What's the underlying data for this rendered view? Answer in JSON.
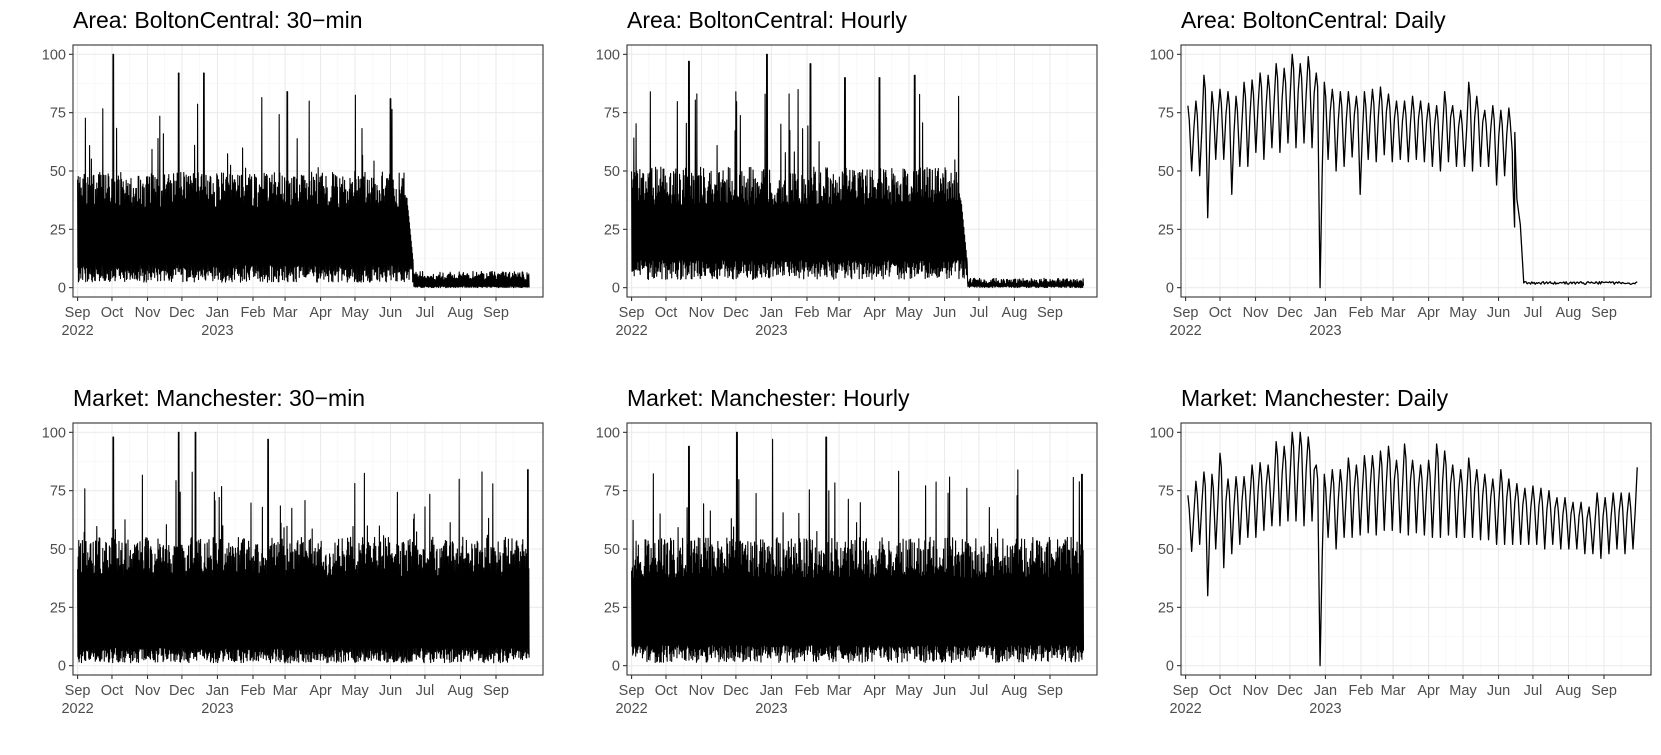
{
  "figure": {
    "panel_titles": [
      "Area: BoltonCentral: 30−min",
      "Area: BoltonCentral: Hourly",
      "Area: BoltonCentral: Daily",
      "Market: Manchester: 30−min",
      "Market: Manchester: Hourly",
      "Market: Manchester: Daily"
    ]
  },
  "chart_data": [
    {
      "type": "line",
      "title": "Area: BoltonCentral: 30−min",
      "resolution": "30-min",
      "xlabel": "",
      "ylabel": "",
      "xlim": [
        "2022-08-28",
        "2023-10-12"
      ],
      "ylim": [
        -4,
        104
      ],
      "y_ticks": [
        "0",
        "25",
        "50",
        "75",
        "100"
      ],
      "x_ticks": [
        "Sep\n2022",
        "Oct",
        "Nov",
        "Dec",
        "Jan\n2023",
        "Feb",
        "Mar",
        "Apr",
        "May",
        "Jun",
        "Jul",
        "Aug",
        "Sep"
      ],
      "grid": true,
      "series": [
        {
          "x_start": "2022-09-01",
          "x_end": "2023-09-30",
          "break_date": "2023-06-21",
          "envelope_before_break": {
            "min": 1,
            "typical_low": 10,
            "typical_high": 45,
            "peak_max": 100
          },
          "envelope_after_break": {
            "min": 0,
            "max": 7
          },
          "notable_peaks": [
            [
              "2022-10-02",
              100
            ],
            [
              "2022-11-28",
              92
            ],
            [
              "2022-12-20",
              92
            ],
            [
              "2023-03-03",
              84
            ],
            [
              "2023-06-01",
              81
            ]
          ]
        }
      ]
    },
    {
      "type": "line",
      "title": "Area: BoltonCentral: Hourly",
      "resolution": "hourly",
      "xlabel": "",
      "ylabel": "",
      "xlim": [
        "2022-08-28",
        "2023-10-12"
      ],
      "ylim": [
        -4,
        104
      ],
      "y_ticks": [
        "0",
        "25",
        "50",
        "75",
        "100"
      ],
      "x_ticks": [
        "Sep\n2022",
        "Oct",
        "Nov",
        "Dec",
        "Jan\n2023",
        "Feb",
        "Mar",
        "Apr",
        "May",
        "Jun",
        "Jul",
        "Aug",
        "Sep"
      ],
      "grid": true,
      "series": [
        {
          "x_start": "2022-09-01",
          "x_end": "2023-09-30",
          "break_date": "2023-06-21",
          "envelope_before_break": {
            "min": 2,
            "typical_low": 12,
            "typical_high": 47,
            "peak_max": 100
          },
          "envelope_after_break": {
            "min": 0,
            "max": 4
          },
          "notable_peaks": [
            [
              "2022-10-21",
              97
            ],
            [
              "2022-12-28",
              100
            ],
            [
              "2023-02-04",
              96
            ],
            [
              "2023-03-06",
              90
            ],
            [
              "2023-04-05",
              90
            ],
            [
              "2023-05-06",
              91
            ]
          ]
        }
      ]
    },
    {
      "type": "line",
      "title": "Area: BoltonCentral: Daily",
      "resolution": "daily",
      "xlabel": "",
      "ylabel": "",
      "xlim": [
        "2022-08-28",
        "2023-10-12"
      ],
      "ylim": [
        -4,
        104
      ],
      "y_ticks": [
        "0",
        "25",
        "50",
        "75",
        "100"
      ],
      "x_ticks": [
        "Sep\n2022",
        "Oct",
        "Nov",
        "Dec",
        "Jan\n2023",
        "Feb",
        "Mar",
        "Apr",
        "May",
        "Jun",
        "Jul",
        "Aug",
        "Sep"
      ],
      "grid": true,
      "series": [
        {
          "x_start": "2022-09-01",
          "x_end": "2023-09-30",
          "weekly_peak_low_pairs": [
            [
              "2022-09-03",
              78,
              50
            ],
            [
              "2022-09-10",
              80,
              48
            ],
            [
              "2022-09-17",
              91,
              30
            ],
            [
              "2022-09-24",
              84,
              55
            ],
            [
              "2022-10-01",
              85,
              55
            ],
            [
              "2022-10-08",
              84,
              40
            ],
            [
              "2022-10-15",
              82,
              52
            ],
            [
              "2022-10-22",
              88,
              52
            ],
            [
              "2022-10-29",
              89,
              58
            ],
            [
              "2022-11-05",
              92,
              55
            ],
            [
              "2022-11-12",
              91,
              60
            ],
            [
              "2022-11-19",
              96,
              58
            ],
            [
              "2022-11-26",
              94,
              62
            ],
            [
              "2022-12-03",
              100,
              60
            ],
            [
              "2022-12-10",
              96,
              62
            ],
            [
              "2022-12-17",
              99,
              60
            ],
            [
              "2022-12-24",
              92,
              0
            ],
            [
              "2022-12-31",
              88,
              55
            ],
            [
              "2023-01-07",
              85,
              50
            ],
            [
              "2023-01-14",
              84,
              52
            ],
            [
              "2023-01-21",
              84,
              56
            ],
            [
              "2023-01-28",
              82,
              40
            ],
            [
              "2023-02-04",
              84,
              55
            ],
            [
              "2023-02-11",
              85,
              54
            ],
            [
              "2023-02-18",
              86,
              57
            ],
            [
              "2023-02-25",
              83,
              54
            ],
            [
              "2023-03-04",
              80,
              55
            ],
            [
              "2023-03-11",
              80,
              54
            ],
            [
              "2023-03-18",
              82,
              55
            ],
            [
              "2023-03-25",
              80,
              54
            ],
            [
              "2023-04-01",
              79,
              52
            ],
            [
              "2023-04-08",
              78,
              50
            ],
            [
              "2023-04-15",
              84,
              54
            ],
            [
              "2023-04-22",
              78,
              52
            ],
            [
              "2023-04-29",
              76,
              52
            ],
            [
              "2023-05-06",
              88,
              50
            ],
            [
              "2023-05-13",
              82,
              52
            ],
            [
              "2023-05-20",
              76,
              52
            ],
            [
              "2023-05-27",
              78,
              44
            ],
            [
              "2023-06-03",
              76,
              48
            ],
            [
              "2023-06-10",
              77,
              48
            ]
          ],
          "decline": [
            [
              "2023-06-13",
              58
            ],
            [
              "2023-06-15",
              26
            ],
            [
              "2023-06-17",
              38
            ],
            [
              "2023-06-20",
              27
            ],
            [
              "2023-06-23",
              2
            ]
          ],
          "tail_level": 2
        }
      ]
    },
    {
      "type": "line",
      "title": "Market: Manchester: 30−min",
      "resolution": "30-min",
      "xlabel": "",
      "ylabel": "",
      "xlim": [
        "2022-08-28",
        "2023-10-12"
      ],
      "ylim": [
        -4,
        104
      ],
      "y_ticks": [
        "0",
        "25",
        "50",
        "75",
        "100"
      ],
      "x_ticks": [
        "Sep\n2022",
        "Oct",
        "Nov",
        "Dec",
        "Jan\n2023",
        "Feb",
        "Mar",
        "Apr",
        "May",
        "Jun",
        "Jul",
        "Aug",
        "Sep"
      ],
      "grid": true,
      "series": [
        {
          "x_start": "2022-09-01",
          "x_end": "2023-09-30",
          "envelope": {
            "min": 0,
            "typical_low": 8,
            "typical_high": 50,
            "peak_max": 100
          },
          "notable_peaks": [
            [
              "2022-10-02",
              98
            ],
            [
              "2022-11-28",
              100
            ],
            [
              "2022-12-13",
              100
            ],
            [
              "2023-02-14",
              97
            ],
            [
              "2023-09-29",
              84
            ]
          ]
        }
      ]
    },
    {
      "type": "line",
      "title": "Market: Manchester: Hourly",
      "resolution": "hourly",
      "xlabel": "",
      "ylabel": "",
      "xlim": [
        "2022-08-28",
        "2023-10-12"
      ],
      "ylim": [
        -4,
        104
      ],
      "y_ticks": [
        "0",
        "25",
        "50",
        "75",
        "100"
      ],
      "x_ticks": [
        "Sep\n2022",
        "Oct",
        "Nov",
        "Dec",
        "Jan\n2023",
        "Feb",
        "Mar",
        "Apr",
        "May",
        "Jun",
        "Jul",
        "Aug",
        "Sep"
      ],
      "grid": true,
      "series": [
        {
          "x_start": "2022-09-01",
          "x_end": "2023-09-30",
          "envelope": {
            "min": 0,
            "typical_low": 9,
            "typical_high": 50,
            "peak_max": 100
          },
          "notable_peaks": [
            [
              "2022-10-21",
              94
            ],
            [
              "2022-12-02",
              100
            ],
            [
              "2023-01-02",
              97
            ],
            [
              "2023-02-18",
              98
            ],
            [
              "2023-09-29",
              82
            ]
          ]
        }
      ]
    },
    {
      "type": "line",
      "title": "Market: Manchester: Daily",
      "resolution": "daily",
      "xlabel": "",
      "ylabel": "",
      "xlim": [
        "2022-08-28",
        "2023-10-12"
      ],
      "ylim": [
        -4,
        104
      ],
      "y_ticks": [
        "0",
        "25",
        "50",
        "75",
        "100"
      ],
      "x_ticks": [
        "Sep\n2022",
        "Oct",
        "Nov",
        "Dec",
        "Jan\n2023",
        "Feb",
        "Mar",
        "Apr",
        "May",
        "Jun",
        "Jul",
        "Aug",
        "Sep"
      ],
      "grid": true,
      "series": [
        {
          "x_start": "2022-09-01",
          "x_end": "2023-09-30",
          "weekly_peak_low_pairs": [
            [
              "2022-09-03",
              73,
              49
            ],
            [
              "2022-09-10",
              79,
              52
            ],
            [
              "2022-09-17",
              83,
              30
            ],
            [
              "2022-09-24",
              82,
              50
            ],
            [
              "2022-10-01",
              91,
              42
            ],
            [
              "2022-10-08",
              80,
              48
            ],
            [
              "2022-10-15",
              81,
              52
            ],
            [
              "2022-10-22",
              81,
              55
            ],
            [
              "2022-10-29",
              86,
              55
            ],
            [
              "2022-11-05",
              87,
              58
            ],
            [
              "2022-11-12",
              86,
              60
            ],
            [
              "2022-11-19",
              96,
              60
            ],
            [
              "2022-11-26",
              94,
              62
            ],
            [
              "2022-12-03",
              100,
              62
            ],
            [
              "2022-12-10",
              100,
              60
            ],
            [
              "2022-12-17",
              98,
              62
            ],
            [
              "2022-12-24",
              86,
              0
            ],
            [
              "2022-12-31",
              82,
              55
            ],
            [
              "2023-01-07",
              84,
              50
            ],
            [
              "2023-01-14",
              84,
              55
            ],
            [
              "2023-01-21",
              89,
              55
            ],
            [
              "2023-01-28",
              86,
              56
            ],
            [
              "2023-02-04",
              90,
              57
            ],
            [
              "2023-02-11",
              90,
              56
            ],
            [
              "2023-02-18",
              92,
              58
            ],
            [
              "2023-02-25",
              94,
              58
            ],
            [
              "2023-03-04",
              88,
              57
            ],
            [
              "2023-03-11",
              95,
              56
            ],
            [
              "2023-03-18",
              88,
              57
            ],
            [
              "2023-03-25",
              86,
              56
            ],
            [
              "2023-04-01",
              88,
              55
            ],
            [
              "2023-04-08",
              95,
              55
            ],
            [
              "2023-04-15",
              92,
              56
            ],
            [
              "2023-04-22",
              86,
              55
            ],
            [
              "2023-04-29",
              84,
              55
            ],
            [
              "2023-05-06",
              89,
              55
            ],
            [
              "2023-05-13",
              84,
              54
            ],
            [
              "2023-05-20",
              82,
              54
            ],
            [
              "2023-05-27",
              80,
              52
            ],
            [
              "2023-06-03",
              84,
              52
            ],
            [
              "2023-06-10",
              80,
              52
            ],
            [
              "2023-06-17",
              78,
              52
            ],
            [
              "2023-06-24",
              76,
              52
            ],
            [
              "2023-07-01",
              77,
              52
            ],
            [
              "2023-07-08",
              76,
              50
            ],
            [
              "2023-07-15",
              75,
              52
            ],
            [
              "2023-07-22",
              72,
              50
            ],
            [
              "2023-07-29",
              72,
              50
            ],
            [
              "2023-08-05",
              70,
              50
            ],
            [
              "2023-08-12",
              70,
              48
            ],
            [
              "2023-08-19",
              68,
              48
            ],
            [
              "2023-08-26",
              74,
              46
            ],
            [
              "2023-09-02",
              72,
              48
            ],
            [
              "2023-09-09",
              74,
              50
            ],
            [
              "2023-09-16",
              74,
              48
            ],
            [
              "2023-09-23",
              74,
              50
            ],
            [
              "2023-09-30",
              85,
              55
            ]
          ]
        }
      ]
    }
  ]
}
